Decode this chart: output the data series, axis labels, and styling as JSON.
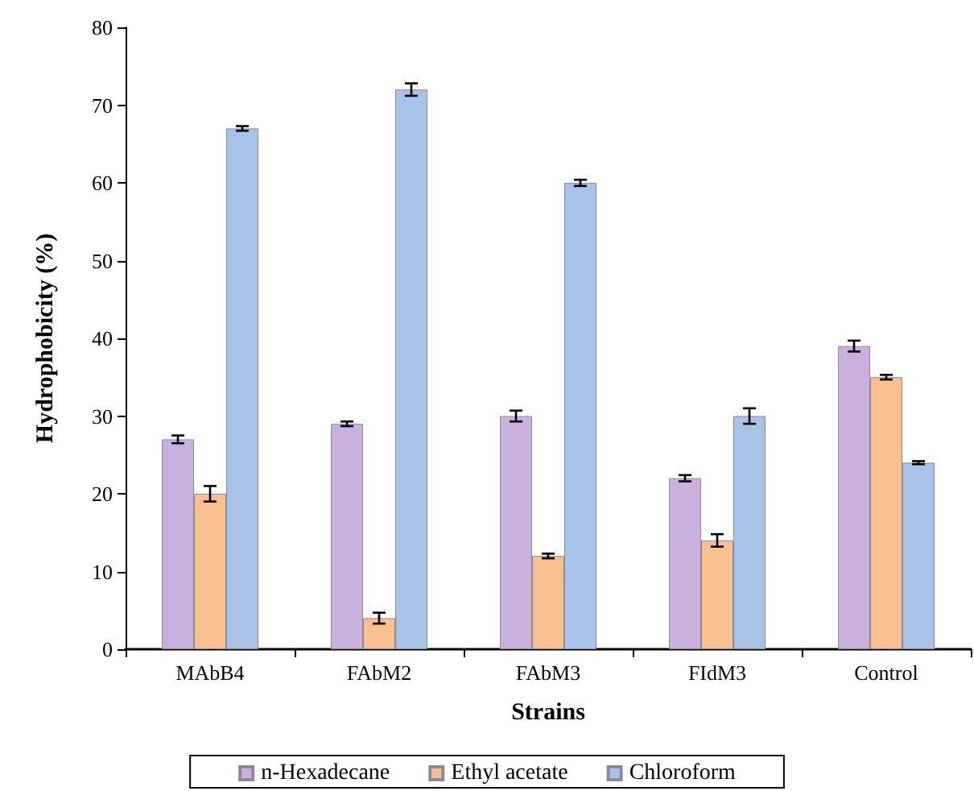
{
  "chart_data": {
    "type": "bar",
    "xlabel": "Strains",
    "ylabel": "Hydrophobicity (%)",
    "categories": [
      "MAbB4",
      "FAbM2",
      "FAbM3",
      "FIdM3",
      "Control"
    ],
    "series": [
      {
        "name": "n-Hexadecane",
        "color": "#c9b0dd",
        "values": [
          27,
          29,
          30,
          22,
          39
        ],
        "errors": [
          0.5,
          0.3,
          0.7,
          0.4,
          0.7
        ]
      },
      {
        "name": "Ethyl acetate",
        "color": "#f8c08e",
        "values": [
          20,
          4,
          12,
          14,
          35
        ],
        "errors": [
          1,
          0.7,
          0.3,
          0.8,
          0.3
        ]
      },
      {
        "name": "Chloroform",
        "color": "#a8c3e8",
        "values": [
          67,
          72,
          60,
          30,
          24
        ],
        "errors": [
          0.3,
          0.8,
          0.4,
          1,
          0.2
        ]
      }
    ],
    "ylim": [
      0,
      80
    ],
    "yticks": [
      0,
      10,
      20,
      30,
      40,
      50,
      60,
      70,
      80
    ],
    "grid": false,
    "legend": "bottom"
  }
}
